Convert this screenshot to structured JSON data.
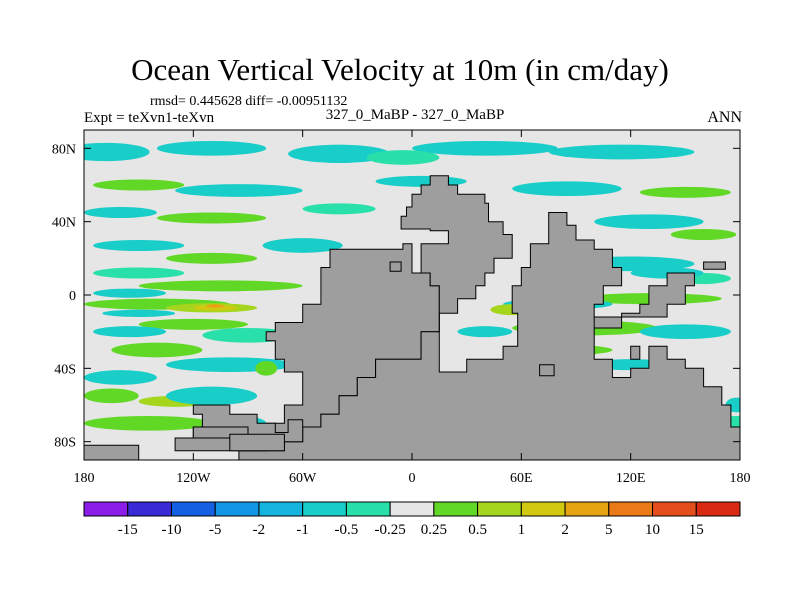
{
  "page": {
    "title": "Ocean Vertical Velocity at 10m (in cm/day)",
    "stats": "rmsd= 0.445628 diff= -0.00951132",
    "expt": "Expt = teXvn1-teXvn",
    "center_label": "327_0_MaBP - 327_0_MaBP",
    "season": "ANN"
  },
  "chart_data": {
    "type": "heatmap",
    "title": "Ocean Vertical Velocity at 10m (in cm/day)",
    "xlabel": "",
    "ylabel": "",
    "xlim": [
      -180,
      180
    ],
    "ylim": [
      -90,
      90
    ],
    "x_ticks": [
      {
        "value": -180,
        "label": "180"
      },
      {
        "value": -120,
        "label": "120W"
      },
      {
        "value": -60,
        "label": "60W"
      },
      {
        "value": 0,
        "label": "0"
      },
      {
        "value": 60,
        "label": "60E"
      },
      {
        "value": 120,
        "label": "120E"
      },
      {
        "value": 180,
        "label": "180"
      }
    ],
    "y_ticks": [
      {
        "value": 80,
        "label": "80N"
      },
      {
        "value": 40,
        "label": "40N"
      },
      {
        "value": 0,
        "label": "0"
      },
      {
        "value": -40,
        "label": "40S"
      },
      {
        "value": -80,
        "label": "80S"
      }
    ],
    "colorbar": {
      "labels": [
        "-15",
        "-10",
        "-5",
        "-2",
        "-1",
        "-0.5",
        "-0.25",
        "0.25",
        "0.5",
        "1",
        "2",
        "5",
        "10",
        "15"
      ],
      "colors": [
        "#8c1ce8",
        "#3a2ad6",
        "#1560e2",
        "#1496e6",
        "#14b4de",
        "#19cdc8",
        "#2ae0aa",
        "#e6e6e6",
        "#62d826",
        "#a6d51e",
        "#d1c812",
        "#e6a312",
        "#ea7a18",
        "#e34e1c",
        "#d92a14"
      ]
    },
    "colors": {
      "background": "#e6e6e6",
      "land": "#9e9e9e",
      "cyan": "#19cdc8",
      "teal": "#2ae0aa",
      "green": "#62d826",
      "yellow_green": "#a6d51e",
      "olive": "#d1c812",
      "orange": "#e6a312"
    },
    "regions": [
      {
        "class": "cyan",
        "lon": -168,
        "lat": 78,
        "dlon": 24,
        "dlat": 5
      },
      {
        "class": "cyan",
        "lon": -110,
        "lat": 80,
        "dlon": 30,
        "dlat": 4
      },
      {
        "class": "cyan",
        "lon": -40,
        "lat": 77,
        "dlon": 28,
        "dlat": 5
      },
      {
        "class": "cyan",
        "lon": 40,
        "lat": 80,
        "dlon": 40,
        "dlat": 4
      },
      {
        "class": "cyan",
        "lon": 115,
        "lat": 78,
        "dlon": 40,
        "dlat": 4
      },
      {
        "class": "teal",
        "lon": -5,
        "lat": 75,
        "dlon": 20,
        "dlat": 4
      },
      {
        "class": "green",
        "lon": -150,
        "lat": 60,
        "dlon": 25,
        "dlat": 3
      },
      {
        "class": "cyan",
        "lon": -95,
        "lat": 57,
        "dlon": 35,
        "dlat": 3.5
      },
      {
        "class": "cyan",
        "lon": 5,
        "lat": 62,
        "dlon": 25,
        "dlat": 3
      },
      {
        "class": "cyan",
        "lon": 85,
        "lat": 58,
        "dlon": 30,
        "dlat": 4
      },
      {
        "class": "green",
        "lon": 150,
        "lat": 56,
        "dlon": 25,
        "dlat": 3
      },
      {
        "class": "cyan",
        "lon": -160,
        "lat": 45,
        "dlon": 20,
        "dlat": 3
      },
      {
        "class": "green",
        "lon": -110,
        "lat": 42,
        "dlon": 30,
        "dlat": 3
      },
      {
        "class": "teal",
        "lon": -40,
        "lat": 47,
        "dlon": 20,
        "dlat": 3
      },
      {
        "class": "cyan",
        "lon": 130,
        "lat": 40,
        "dlon": 30,
        "dlat": 4
      },
      {
        "class": "green",
        "lon": 160,
        "lat": 33,
        "dlon": 18,
        "dlat": 3
      },
      {
        "class": "cyan",
        "lon": -150,
        "lat": 27,
        "dlon": 25,
        "dlat": 3
      },
      {
        "class": "cyan",
        "lon": -60,
        "lat": 27,
        "dlon": 22,
        "dlat": 4
      },
      {
        "class": "green",
        "lon": -110,
        "lat": 20,
        "dlon": 25,
        "dlat": 3
      },
      {
        "class": "teal",
        "lon": -150,
        "lat": 12,
        "dlon": 25,
        "dlat": 3
      },
      {
        "class": "cyan",
        "lon": 120,
        "lat": 17,
        "dlon": 35,
        "dlat": 4
      },
      {
        "class": "teal",
        "lon": 160,
        "lat": 9,
        "dlon": 15,
        "dlat": 3
      },
      {
        "class": "green",
        "lon": -105,
        "lat": 5,
        "dlon": 45,
        "dlat": 3
      },
      {
        "class": "cyan",
        "lon": -155,
        "lat": 1,
        "dlon": 20,
        "dlat": 2.5
      },
      {
        "class": "green",
        "lon": -140,
        "lat": -5,
        "dlon": 40,
        "dlat": 3
      },
      {
        "class": "yellow_green",
        "lon": -110,
        "lat": -7,
        "dlon": 25,
        "dlat": 2.5
      },
      {
        "class": "olive",
        "lon": -108,
        "lat": -7,
        "dlon": 12,
        "dlat": 1.5
      },
      {
        "class": "orange",
        "lon": -108,
        "lat": -6,
        "dlon": 5,
        "dlat": 1
      },
      {
        "class": "cyan",
        "lon": -150,
        "lat": -10,
        "dlon": 20,
        "dlat": 2
      },
      {
        "class": "green",
        "lon": -120,
        "lat": -16,
        "dlon": 30,
        "dlat": 3
      },
      {
        "class": "cyan",
        "lon": -155,
        "lat": -20,
        "dlon": 20,
        "dlat": 3
      },
      {
        "class": "teal",
        "lon": -90,
        "lat": -22,
        "dlon": 25,
        "dlat": 4
      },
      {
        "class": "green",
        "lon": -140,
        "lat": -30,
        "dlon": 25,
        "dlat": 4
      },
      {
        "class": "cyan",
        "lon": -100,
        "lat": -38,
        "dlon": 35,
        "dlat": 4
      },
      {
        "class": "cyan",
        "lon": -160,
        "lat": -45,
        "dlon": 20,
        "dlat": 4
      },
      {
        "class": "green",
        "lon": -165,
        "lat": -55,
        "dlon": 15,
        "dlat": 4
      },
      {
        "class": "yellow_green",
        "lon": -130,
        "lat": -58,
        "dlon": 20,
        "dlat": 3
      },
      {
        "class": "cyan",
        "lon": -110,
        "lat": -55,
        "dlon": 25,
        "dlat": 5
      },
      {
        "class": "green",
        "lon": -145,
        "lat": -70,
        "dlon": 35,
        "dlat": 4
      },
      {
        "class": "cyan",
        "lon": -95,
        "lat": -70,
        "dlon": 15,
        "dlat": 4
      },
      {
        "class": "cyan",
        "lon": 140,
        "lat": 12,
        "dlon": 20,
        "dlat": 3
      },
      {
        "class": "green",
        "lon": 130,
        "lat": -2,
        "dlon": 40,
        "dlat": 3
      },
      {
        "class": "cyan",
        "lon": 80,
        "lat": -5,
        "dlon": 30,
        "dlat": 3
      },
      {
        "class": "yellow_green",
        "lon": 55,
        "lat": -8,
        "dlon": 12,
        "dlat": 3
      },
      {
        "class": "green",
        "lon": 95,
        "lat": -18,
        "dlon": 40,
        "dlat": 4
      },
      {
        "class": "cyan",
        "lon": 150,
        "lat": -20,
        "dlon": 25,
        "dlat": 4
      },
      {
        "class": "cyan",
        "lon": 40,
        "lat": -20,
        "dlon": 15,
        "dlat": 3
      },
      {
        "class": "green",
        "lon": 80,
        "lat": -30,
        "dlon": 30,
        "dlat": 3
      },
      {
        "class": "cyan",
        "lon": 120,
        "lat": -38,
        "dlon": 25,
        "dlat": 3
      },
      {
        "class": "green",
        "lon": 30,
        "lat": -45,
        "dlon": 15,
        "dlat": 3
      },
      {
        "class": "cyan",
        "lon": 60,
        "lat": -50,
        "dlon": 20,
        "dlat": 4
      },
      {
        "class": "yellow_green",
        "lon": 80,
        "lat": -50,
        "dlon": 10,
        "dlat": 2
      },
      {
        "class": "teal",
        "lon": 178,
        "lat": -70,
        "dlon": 10,
        "dlat": 4
      },
      {
        "class": "cyan",
        "lon": 178,
        "lat": -60,
        "dlon": 6,
        "dlat": 4
      },
      {
        "class": "cyan",
        "lon": -60,
        "lat": -70,
        "dlon": 10,
        "dlat": 5
      },
      {
        "class": "green",
        "lon": -80,
        "lat": -40,
        "dlon": 6,
        "dlat": 4
      }
    ],
    "land": [
      [
        [
          -23,
          25
        ],
        [
          -5,
          25
        ],
        [
          -5,
          28
        ],
        [
          0,
          28
        ],
        [
          0,
          12
        ],
        [
          10,
          12
        ],
        [
          10,
          5
        ],
        [
          15,
          5
        ],
        [
          15,
          -20
        ],
        [
          5,
          -20
        ],
        [
          5,
          -35
        ],
        [
          -20,
          -35
        ],
        [
          -20,
          -45
        ],
        [
          -30,
          -45
        ],
        [
          -30,
          -55
        ],
        [
          -40,
          -55
        ],
        [
          -40,
          -65
        ],
        [
          -50,
          -65
        ],
        [
          -50,
          -72
        ],
        [
          -60,
          -72
        ],
        [
          -60,
          -80
        ],
        [
          -70,
          -80
        ],
        [
          -70,
          -85
        ],
        [
          -90,
          -85
        ],
        [
          -90,
          -80
        ],
        [
          -80,
          -80
        ],
        [
          -80,
          -70
        ],
        [
          -70,
          -70
        ],
        [
          -70,
          -60
        ],
        [
          -60,
          -60
        ],
        [
          -60,
          -50
        ],
        [
          -60,
          -42
        ],
        [
          -70,
          -42
        ],
        [
          -70,
          -35
        ],
        [
          -75,
          -35
        ],
        [
          -75,
          -25
        ],
        [
          -80,
          -25
        ],
        [
          -80,
          -20
        ],
        [
          -75,
          -20
        ],
        [
          -75,
          -15
        ],
        [
          -60,
          -15
        ],
        [
          -60,
          -5
        ],
        [
          -50,
          -5
        ],
        [
          -50,
          15
        ],
        [
          -45,
          15
        ],
        [
          -45,
          25
        ]
      ],
      [
        [
          -6,
          36
        ],
        [
          -6,
          43
        ],
        [
          -3,
          43
        ],
        [
          -3,
          48
        ],
        [
          0,
          48
        ],
        [
          0,
          55
        ],
        [
          5,
          55
        ],
        [
          5,
          60
        ],
        [
          10,
          60
        ],
        [
          10,
          65
        ],
        [
          20,
          65
        ],
        [
          20,
          60
        ],
        [
          25,
          60
        ],
        [
          25,
          55
        ],
        [
          40,
          55
        ],
        [
          40,
          50
        ],
        [
          42,
          50
        ],
        [
          42,
          40
        ],
        [
          50,
          40
        ],
        [
          50,
          33
        ],
        [
          55,
          33
        ],
        [
          55,
          20
        ],
        [
          45,
          20
        ],
        [
          45,
          12
        ],
        [
          40,
          12
        ],
        [
          40,
          5
        ],
        [
          35,
          5
        ],
        [
          35,
          -2
        ],
        [
          25,
          -2
        ],
        [
          25,
          -10
        ],
        [
          15,
          -10
        ],
        [
          15,
          -25
        ],
        [
          15,
          -42
        ],
        [
          30,
          -42
        ],
        [
          30,
          -35
        ],
        [
          50,
          -35
        ],
        [
          50,
          -28
        ],
        [
          58,
          -28
        ],
        [
          58,
          -10
        ],
        [
          55,
          -10
        ],
        [
          55,
          5
        ],
        [
          60,
          5
        ],
        [
          60,
          15
        ],
        [
          65,
          15
        ],
        [
          65,
          28
        ],
        [
          75,
          28
        ],
        [
          75,
          45
        ],
        [
          85,
          45
        ],
        [
          85,
          38
        ],
        [
          90,
          38
        ],
        [
          90,
          30
        ],
        [
          100,
          30
        ],
        [
          100,
          25
        ],
        [
          110,
          25
        ],
        [
          110,
          15
        ],
        [
          115,
          15
        ],
        [
          115,
          5
        ],
        [
          105,
          5
        ],
        [
          105,
          -5
        ],
        [
          100,
          -5
        ],
        [
          100,
          -18
        ],
        [
          115,
          -18
        ],
        [
          115,
          -10
        ],
        [
          125,
          -10
        ],
        [
          125,
          -5
        ],
        [
          130,
          -5
        ],
        [
          130,
          5
        ],
        [
          140,
          5
        ],
        [
          140,
          12
        ],
        [
          155,
          12
        ],
        [
          155,
          5
        ],
        [
          150,
          5
        ],
        [
          150,
          -5
        ],
        [
          140,
          -5
        ],
        [
          140,
          -12
        ],
        [
          100,
          -12
        ],
        [
          100,
          -35
        ],
        [
          110,
          -35
        ],
        [
          110,
          -45
        ],
        [
          120,
          -45
        ],
        [
          120,
          -40
        ],
        [
          130,
          -40
        ],
        [
          130,
          -28
        ],
        [
          140,
          -28
        ],
        [
          140,
          -35
        ],
        [
          150,
          -35
        ],
        [
          150,
          -40
        ],
        [
          160,
          -40
        ],
        [
          160,
          -50
        ],
        [
          170,
          -50
        ],
        [
          170,
          -60
        ],
        [
          175,
          -60
        ],
        [
          175,
          -72
        ],
        [
          180,
          -72
        ],
        [
          180,
          -90
        ],
        [
          -95,
          -90
        ],
        [
          -95,
          -85
        ],
        [
          -70,
          -85
        ],
        [
          -70,
          -80
        ],
        [
          -60,
          -80
        ],
        [
          -60,
          -72
        ],
        [
          -50,
          -72
        ],
        [
          -50,
          -65
        ],
        [
          -40,
          -65
        ],
        [
          -40,
          -55
        ],
        [
          -30,
          -55
        ],
        [
          -30,
          -45
        ],
        [
          -20,
          -45
        ],
        [
          -20,
          -35
        ],
        [
          5,
          -35
        ],
        [
          5,
          -20
        ],
        [
          15,
          -20
        ],
        [
          15,
          5
        ],
        [
          10,
          5
        ],
        [
          10,
          12
        ],
        [
          5,
          12
        ],
        [
          5,
          28
        ],
        [
          20,
          28
        ],
        [
          20,
          35
        ],
        [
          10,
          35
        ],
        [
          10,
          36
        ]
      ],
      [
        [
          -120,
          -60
        ],
        [
          -100,
          -60
        ],
        [
          -100,
          -65
        ],
        [
          -85,
          -65
        ],
        [
          -85,
          -70
        ],
        [
          -75,
          -70
        ],
        [
          -75,
          -75
        ],
        [
          -68,
          -75
        ],
        [
          -68,
          -68
        ],
        [
          -60,
          -68
        ],
        [
          -60,
          -80
        ],
        [
          -80,
          -80
        ],
        [
          -80,
          -85
        ],
        [
          -130,
          -85
        ],
        [
          -130,
          -78
        ],
        [
          -120,
          -78
        ],
        [
          -120,
          -72
        ],
        [
          -115,
          -72
        ],
        [
          -115,
          -65
        ],
        [
          -120,
          -65
        ]
      ],
      [
        [
          -120,
          -72
        ],
        [
          -90,
          -72
        ],
        [
          -90,
          -78
        ],
        [
          -120,
          -78
        ]
      ],
      [
        [
          -180,
          -82
        ],
        [
          -150,
          -82
        ],
        [
          -150,
          -90
        ],
        [
          -180,
          -90
        ]
      ],
      [
        [
          -100,
          -76
        ],
        [
          -70,
          -76
        ],
        [
          -70,
          -85
        ],
        [
          -100,
          -85
        ]
      ],
      [
        [
          120,
          -28
        ],
        [
          125,
          -28
        ],
        [
          125,
          -35
        ],
        [
          120,
          -35
        ]
      ],
      [
        [
          160,
          18
        ],
        [
          172,
          18
        ],
        [
          172,
          14
        ],
        [
          160,
          14
        ]
      ],
      [
        [
          -12,
          18
        ],
        [
          -6,
          18
        ],
        [
          -6,
          13
        ],
        [
          -12,
          13
        ]
      ],
      [
        [
          70,
          -38
        ],
        [
          78,
          -38
        ],
        [
          78,
          -44
        ],
        [
          70,
          -44
        ]
      ]
    ]
  }
}
